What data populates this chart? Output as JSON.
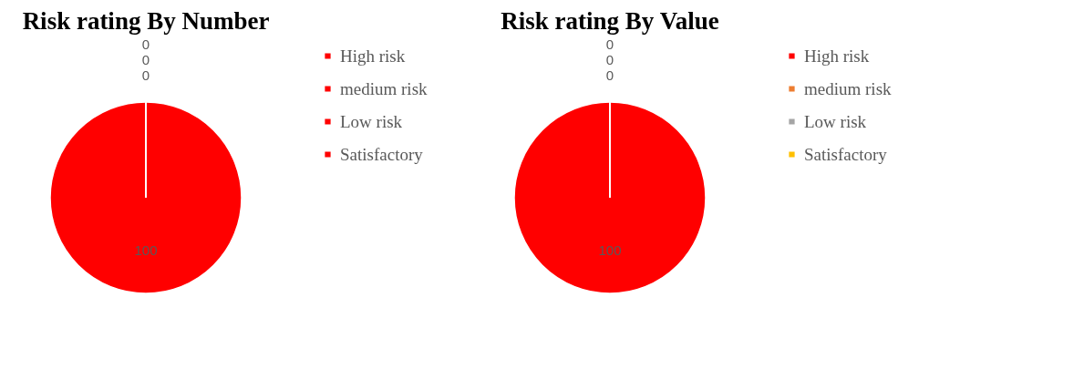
{
  "chart_data": [
    {
      "type": "pie",
      "title": "Risk rating By Number",
      "categories": [
        "High risk",
        "medium risk",
        "Low risk",
        "Satisfactory"
      ],
      "values": [
        100,
        0,
        0,
        0
      ],
      "value_labels": [
        "100",
        "0",
        "0",
        "0"
      ],
      "colors": [
        "#ff0000",
        "#ff0000",
        "#ff0000",
        "#ff0000"
      ],
      "legend": "right"
    },
    {
      "type": "pie",
      "title": "Risk rating By Value",
      "categories": [
        "High risk",
        "medium risk",
        "Low risk",
        "Satisfactory"
      ],
      "values": [
        100,
        0,
        0,
        0
      ],
      "value_labels": [
        "100",
        "0",
        "0",
        "0"
      ],
      "colors": [
        "#ff0000",
        "#ed7d31",
        "#a5a5a5",
        "#ffc000"
      ],
      "legend": "right"
    }
  ]
}
